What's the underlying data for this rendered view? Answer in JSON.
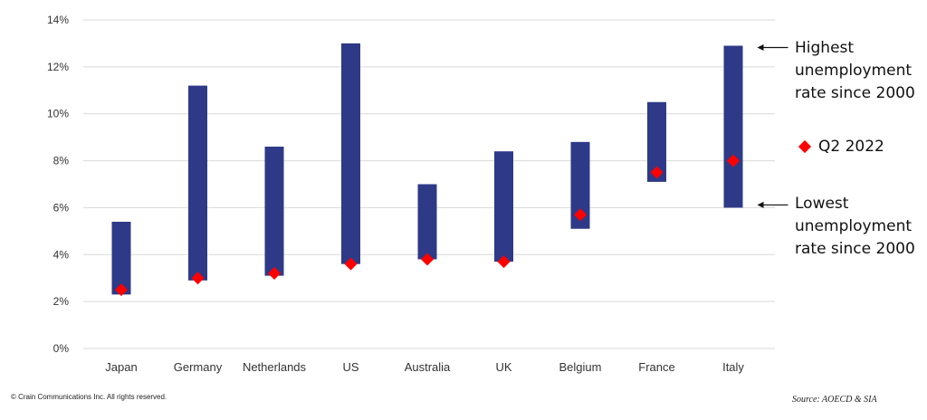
{
  "chart_data": {
    "type": "range-bar",
    "categories": [
      "Japan",
      "Germany",
      "Netherlands",
      "US",
      "Australia",
      "UK",
      "Belgium",
      "France",
      "Italy"
    ],
    "series": [
      {
        "name": "Highest unemployment rate since 2000",
        "values": [
          5.4,
          11.2,
          8.6,
          13.0,
          7.0,
          8.4,
          8.8,
          10.5,
          12.9
        ]
      },
      {
        "name": "Lowest unemployment rate since 2000",
        "values": [
          2.3,
          2.9,
          3.1,
          3.6,
          3.8,
          3.7,
          5.1,
          7.1,
          6.0
        ]
      },
      {
        "name": "Q2 2022",
        "values": [
          2.5,
          3.0,
          3.2,
          3.6,
          3.8,
          3.7,
          5.7,
          7.5,
          8.0
        ]
      }
    ],
    "ylim": [
      0,
      14
    ],
    "yticks": [
      "0%",
      "2%",
      "4%",
      "6%",
      "8%",
      "10%",
      "12%",
      "14%"
    ],
    "grid": true,
    "colors": {
      "bar": "#2e3a87",
      "marker": "#ff0000",
      "grid": "#d9d9d9"
    }
  },
  "annotations": {
    "highest": [
      "Highest",
      "unemployment",
      "rate since 2000"
    ],
    "lowest": [
      "Lowest",
      "unemployment",
      "rate since 2000"
    ],
    "legend_q2": "Q2 2022"
  },
  "footer": {
    "copyright": "© Crain Communications Inc. All rights reserved.",
    "source": "Source: AOECD & SIA"
  }
}
